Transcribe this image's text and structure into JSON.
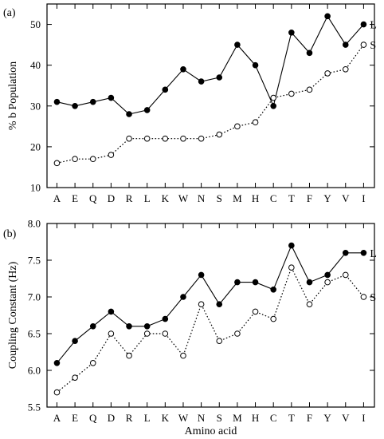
{
  "chart_data": [
    {
      "type": "line",
      "panel_label": "(a)",
      "xlabel": "",
      "ylabel": "% b Population",
      "categories": [
        "A",
        "E",
        "Q",
        "D",
        "R",
        "L",
        "K",
        "W",
        "N",
        "S",
        "M",
        "H",
        "C",
        "T",
        "F",
        "Y",
        "V",
        "I"
      ],
      "ylim": [
        10,
        55
      ],
      "yticks": [
        10,
        20,
        30,
        40,
        50
      ],
      "grid": false,
      "series": [
        {
          "name": "L",
          "marker": "filled-circle",
          "line": "solid",
          "values": [
            31,
            30,
            31,
            32,
            28,
            29,
            34,
            39,
            36,
            37,
            45,
            40,
            30,
            48,
            43,
            52,
            45,
            50
          ]
        },
        {
          "name": "S",
          "marker": "open-circle",
          "line": "dotted",
          "values": [
            16,
            17,
            17,
            18,
            22,
            22,
            22,
            22,
            22,
            23,
            25,
            26,
            32,
            33,
            34,
            38,
            39,
            45
          ]
        }
      ]
    },
    {
      "type": "line",
      "panel_label": "(b)",
      "xlabel": "Amino acid",
      "ylabel": "Coupling Constant (Hz)",
      "categories": [
        "A",
        "E",
        "Q",
        "D",
        "R",
        "L",
        "K",
        "W",
        "N",
        "S",
        "M",
        "H",
        "C",
        "T",
        "F",
        "Y",
        "V",
        "I"
      ],
      "ylim": [
        5.5,
        8.0
      ],
      "yticks": [
        "5.5",
        "6.0",
        "6.5",
        "7.0",
        "7.5",
        "8.0"
      ],
      "grid": false,
      "series": [
        {
          "name": "L",
          "marker": "filled-circle",
          "line": "solid",
          "values": [
            6.1,
            6.4,
            6.6,
            6.8,
            6.6,
            6.6,
            6.7,
            7.0,
            7.3,
            6.9,
            7.2,
            7.2,
            7.1,
            7.7,
            7.2,
            7.3,
            7.6,
            7.6
          ]
        },
        {
          "name": "S",
          "marker": "open-circle",
          "line": "dotted",
          "values": [
            5.7,
            5.9,
            6.1,
            6.5,
            6.2,
            6.5,
            6.5,
            6.2,
            6.9,
            6.4,
            6.5,
            6.8,
            6.7,
            7.4,
            6.9,
            7.2,
            7.3,
            7.0
          ]
        }
      ]
    }
  ]
}
